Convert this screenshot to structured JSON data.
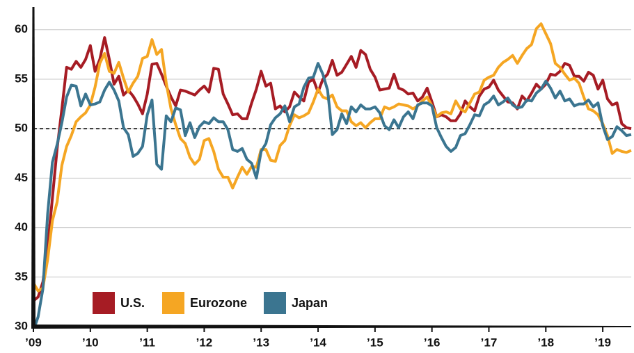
{
  "chart_data": {
    "type": "line",
    "xlim": [
      0,
      126
    ],
    "xticks": [
      {
        "value": 0,
        "label": "’09"
      },
      {
        "value": 12,
        "label": "’10"
      },
      {
        "value": 24,
        "label": "’11"
      },
      {
        "value": 36,
        "label": "’12"
      },
      {
        "value": 48,
        "label": "’13"
      },
      {
        "value": 60,
        "label": "’14"
      },
      {
        "value": 72,
        "label": "’15"
      },
      {
        "value": 84,
        "label": "’16"
      },
      {
        "value": 96,
        "label": "’17"
      },
      {
        "value": 108,
        "label": "’18"
      },
      {
        "value": 120,
        "label": "’19"
      }
    ],
    "ylim": [
      30,
      62.3
    ],
    "yticks": [
      30,
      35,
      40,
      45,
      50,
      55,
      60
    ],
    "grid": true,
    "reference_line": 50,
    "series": [
      {
        "name": "U.S.",
        "color": "#a61c24",
        "values": [
          32.6,
          33,
          34.5,
          38,
          43,
          48,
          52,
          56.2,
          56,
          56.8,
          56.2,
          57,
          58.4,
          55.8,
          57,
          59.2,
          57,
          54.5,
          55.3,
          53.4,
          53.9,
          53.3,
          52.5,
          51.5,
          53.5,
          56.5,
          56.6,
          55.5,
          54.3,
          53.2,
          52.3,
          53.9,
          53.8,
          53.6,
          53.4,
          53.9,
          54.3,
          53.7,
          56.1,
          56,
          53.5,
          52.5,
          51.4,
          51.5,
          51,
          51,
          52.6,
          54,
          55.8,
          54.3,
          54.6,
          52,
          52.3,
          51.7,
          52.2,
          53.7,
          53.2,
          52.8,
          54.7,
          55,
          53.7,
          55,
          55.5,
          56.9,
          55.4,
          55.7,
          56.5,
          57.3,
          56.2,
          57.9,
          57.5,
          56,
          55.2,
          53.9,
          54,
          54.1,
          55.5,
          54.1,
          53.9,
          53.5,
          53.6,
          52.8,
          53.2,
          54.1,
          52.7,
          51.2,
          51.4,
          51.2,
          50.8,
          50.8,
          51.5,
          52.8,
          52.2,
          51.8,
          53.3,
          54,
          54.2,
          54.9,
          53.9,
          53.3,
          52.7,
          52.6,
          52,
          53.3,
          52.8,
          53.6,
          54.5,
          54,
          54.5,
          55.5,
          55.4,
          55.8,
          56.6,
          56.4,
          55.3,
          55.3,
          54.8,
          55.7,
          55.4,
          54,
          54.9,
          53,
          52.4,
          52.6,
          50.5,
          50.1,
          50
        ]
      },
      {
        "name": "Eurozone",
        "color": "#f5a623",
        "values": [
          34.4,
          33.6,
          33.9,
          36.8,
          40.7,
          42.6,
          46.3,
          48.2,
          49.3,
          50.7,
          51.2,
          51.6,
          52.4,
          54.2,
          56.6,
          57.6,
          55.8,
          55.6,
          56.7,
          55.1,
          53.7,
          54.6,
          55.3,
          57.1,
          57.3,
          59,
          57.5,
          58,
          54.6,
          52,
          50.4,
          49,
          48.5,
          47.1,
          46.4,
          46.9,
          48.8,
          49,
          47.7,
          45.9,
          45.1,
          45.1,
          44,
          45.1,
          46.1,
          45.4,
          46.2,
          46.1,
          47.9,
          47.9,
          46.8,
          46.7,
          48.3,
          48.8,
          50.3,
          51.4,
          51.1,
          51.3,
          51.6,
          52.7,
          54,
          53.2,
          53,
          53.4,
          52.2,
          51.8,
          51.8,
          50.7,
          50.3,
          50.6,
          50.1,
          50.6,
          51,
          51,
          52.2,
          52,
          52.2,
          52.5,
          52.4,
          52.3,
          52,
          52.3,
          52.8,
          53.2,
          52.3,
          51.2,
          51.6,
          51.7,
          51.5,
          52.8,
          52,
          51.7,
          52.6,
          53.5,
          53.7,
          54.9,
          55.2,
          55.4,
          56.2,
          56.7,
          57,
          57.4,
          56.6,
          57.4,
          58.1,
          58.5,
          60.1,
          60.6,
          59.6,
          58.6,
          56.6,
          56.2,
          55.5,
          54.9,
          55.1,
          54.6,
          53.2,
          52,
          51.8,
          51.4,
          50.5,
          49.3,
          47.5,
          47.9,
          47.7,
          47.6,
          47.8
        ]
      },
      {
        "name": "Japan",
        "color": "#3b7590",
        "values": [
          29.6,
          31,
          33.8,
          41.4,
          46.6,
          48.4,
          50.6,
          53.2,
          54.4,
          54.3,
          52.3,
          53.5,
          52.4,
          52.5,
          52.7,
          53.9,
          54.7,
          53.9,
          52.8,
          50.1,
          49.4,
          47.2,
          47.5,
          48.2,
          51.4,
          52.9,
          46.4,
          45.9,
          51.3,
          50.7,
          52.1,
          51.9,
          49.3,
          50.6,
          49.1,
          50.2,
          50.7,
          50.5,
          51.1,
          50.7,
          50.7,
          49.9,
          47.9,
          47.7,
          48,
          46.9,
          46.5,
          45,
          47.7,
          48.5,
          50.4,
          51.1,
          51.5,
          52.3,
          50.7,
          52.2,
          52.5,
          54.2,
          55.1,
          55.2,
          56.6,
          55.5,
          53.9,
          49.4,
          49.9,
          51.5,
          50.5,
          52.2,
          51.7,
          52.4,
          52,
          52,
          52.2,
          51.6,
          50.3,
          49.9,
          50.9,
          50.1,
          51.2,
          51.7,
          51,
          52.4,
          52.6,
          52.6,
          52.3,
          50.1,
          49.1,
          48.2,
          47.7,
          48.1,
          49.3,
          49.5,
          50.4,
          51.4,
          51.3,
          52.4,
          52.7,
          53.3,
          52.4,
          52.7,
          53.1,
          52.4,
          52.1,
          52.2,
          52.9,
          52.8,
          53.6,
          54,
          54.8,
          54.1,
          53.1,
          53.8,
          52.8,
          53,
          52.3,
          52.5,
          52.5,
          52.9,
          52.2,
          52.6,
          50.3,
          48.9,
          49.2,
          50.2,
          49.8,
          49.3,
          49.4
        ]
      }
    ]
  }
}
